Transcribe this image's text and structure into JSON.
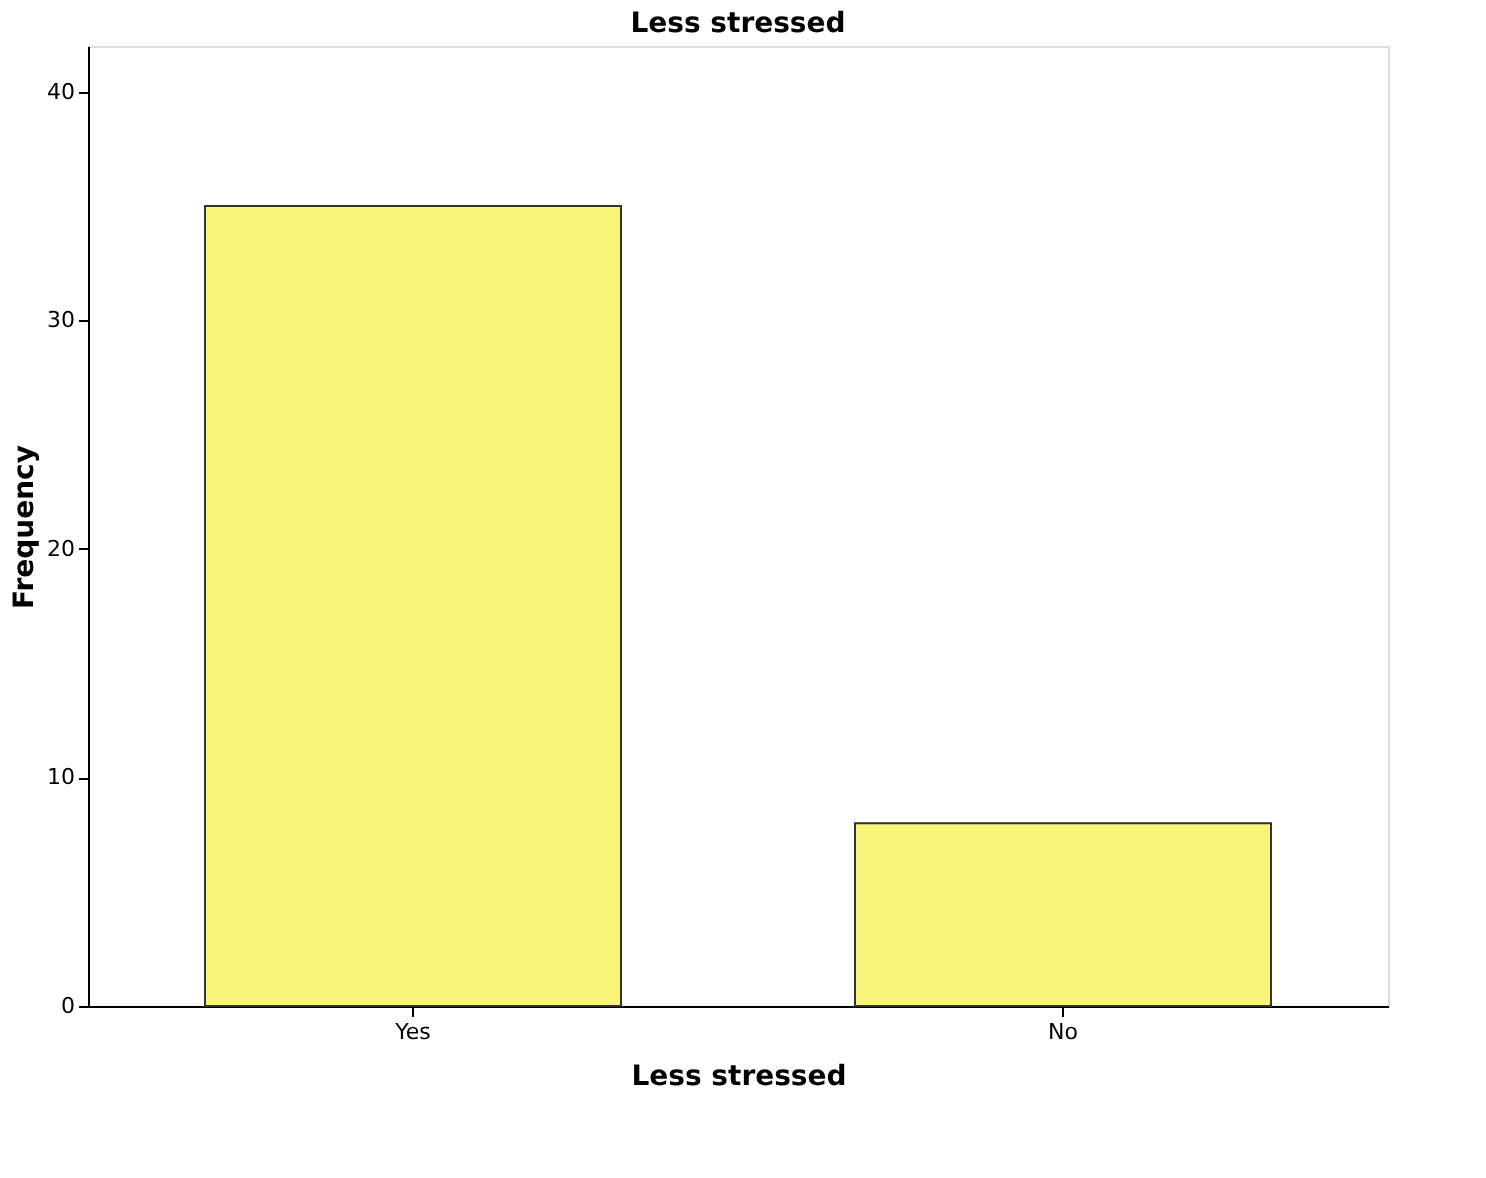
{
  "chart_data": {
    "type": "bar",
    "title": "Less stressed",
    "xlabel": "Less stressed",
    "ylabel": "Frequency",
    "categories": [
      "Yes",
      "No"
    ],
    "values": [
      35,
      8
    ],
    "color": "#f8f47a",
    "ylim": [
      0,
      42
    ],
    "yticks": [
      0,
      10,
      20,
      30,
      40
    ],
    "grid": false
  }
}
